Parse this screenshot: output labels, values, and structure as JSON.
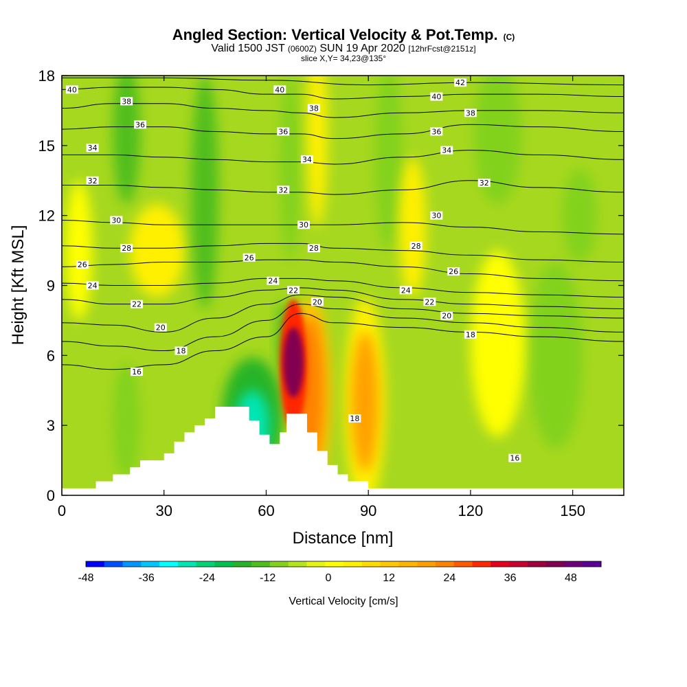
{
  "chart_data": {
    "type": "heatmap",
    "title": "Angled Section: Vertical Velocity & Pot.Temp.",
    "title_mark": "(C)",
    "subtitle_main": "Valid 1500 JST",
    "subtitle_utc": "(0600Z)",
    "subtitle_date": "SUN 19 Apr 2020",
    "subtitle_fcst": "[12hrFcst@2151z]",
    "slice": "slice X,Y= 34,23@135°",
    "xlabel": "Distance [nm]",
    "ylabel": "Height [Kft MSL]",
    "xlim": [
      0,
      165
    ],
    "ylim": [
      0,
      18
    ],
    "x_ticks": [
      0,
      30,
      60,
      90,
      120,
      150
    ],
    "y_ticks": [
      0,
      3,
      6,
      9,
      12,
      15,
      18
    ],
    "grid": false,
    "colorbar": {
      "label": "Vertical Velocity [cm/s]",
      "placement": "bottom",
      "min": -48,
      "max": 54,
      "step": 4,
      "tick_values": [
        -48,
        -36,
        -24,
        -12,
        0,
        12,
        24,
        36,
        48
      ],
      "colors": [
        "#0000ff",
        "#0050ff",
        "#0096ff",
        "#00c8ff",
        "#00ffff",
        "#00e6b4",
        "#00d278",
        "#00c050",
        "#28b428",
        "#50be1e",
        "#82d21e",
        "#b4e61e",
        "#e6f514",
        "#ffff00",
        "#fff000",
        "#ffdc00",
        "#ffc800",
        "#ffb400",
        "#ffa000",
        "#ff8200",
        "#ff5a00",
        "#ff2800",
        "#e6001e",
        "#c80032",
        "#a0003c",
        "#820050",
        "#6e0078",
        "#5a0096"
      ]
    },
    "terrain_top_kft": [
      [
        0,
        0.3
      ],
      [
        10,
        0.6
      ],
      [
        15,
        0.9
      ],
      [
        20,
        1.2
      ],
      [
        23,
        1.5
      ],
      [
        30,
        1.8
      ],
      [
        33,
        2.3
      ],
      [
        36,
        2.7
      ],
      [
        39,
        3.0
      ],
      [
        42,
        3.3
      ],
      [
        45,
        3.8
      ],
      [
        55,
        3.2
      ],
      [
        58,
        2.6
      ],
      [
        61,
        2.2
      ],
      [
        64,
        2.7
      ],
      [
        66,
        3.5
      ],
      [
        72,
        2.7
      ],
      [
        75,
        1.9
      ],
      [
        78,
        1.3
      ],
      [
        81,
        0.9
      ],
      [
        84,
        0.6
      ],
      [
        90,
        0.3
      ],
      [
        165,
        0.3
      ]
    ],
    "velocity_cells": [
      {
        "x": 68,
        "z": 5.7,
        "rx": 3,
        "rz": 1.5,
        "value": 54
      },
      {
        "x": 68,
        "z": 5.6,
        "rx": 4,
        "rz": 2.8,
        "value": 36
      },
      {
        "x": 73,
        "z": 4.5,
        "rx": 4,
        "rz": 3.2,
        "value": 30
      },
      {
        "x": 73,
        "z": 4.3,
        "rx": 6,
        "rz": 4.2,
        "value": 18
      },
      {
        "x": 89,
        "z": 4.0,
        "rx": 4,
        "rz": 3.0,
        "value": 24
      },
      {
        "x": 89,
        "z": 4.0,
        "rx": 6,
        "rz": 4.5,
        "value": 10
      },
      {
        "x": 103,
        "z": 11.5,
        "rx": 4,
        "rz": 3.0,
        "value": 8
      },
      {
        "x": 56,
        "z": 3.0,
        "rx": 5,
        "rz": 1.5,
        "value": -26
      },
      {
        "x": 56,
        "z": 3.4,
        "rx": 9,
        "rz": 2.5,
        "value": -14
      },
      {
        "x": 65,
        "z": 6.8,
        "rx": 2,
        "rz": 1.5,
        "value": -12
      },
      {
        "x": 19,
        "z": 15.5,
        "rx": 4,
        "rz": 3.0,
        "value": -10
      },
      {
        "x": 42,
        "z": 13.0,
        "rx": 4,
        "rz": 5.0,
        "value": -10
      },
      {
        "x": 67,
        "z": 14.0,
        "rx": 3,
        "rz": 4.0,
        "value": -8
      },
      {
        "x": 128,
        "z": 15.5,
        "rx": 7,
        "rz": 3.0,
        "value": -8
      },
      {
        "x": 152,
        "z": 12.0,
        "rx": 5,
        "rz": 2.0,
        "value": -8
      },
      {
        "x": 145,
        "z": 6.0,
        "rx": 8,
        "rz": 4.0,
        "value": -6
      },
      {
        "x": 19,
        "z": 3.2,
        "rx": 4,
        "rz": 2.5,
        "value": -6
      },
      {
        "x": 96,
        "z": 14.5,
        "rx": 4,
        "rz": 4.0,
        "value": -6
      },
      {
        "x": 28,
        "z": 10.5,
        "rx": 8,
        "rz": 2.0,
        "value": 8
      },
      {
        "x": 128,
        "z": 6.5,
        "rx": 8,
        "rz": 4.0,
        "value": 6
      },
      {
        "x": 75,
        "z": 15.5,
        "rx": 3,
        "rz": 4.0,
        "value": 8
      },
      {
        "x": 5,
        "z": 10.5,
        "rx": 4,
        "rz": 3.0,
        "value": 6
      }
    ],
    "theta_isolines": [
      {
        "value": 16,
        "points": [
          [
            0,
            5.6
          ],
          [
            15,
            5.4
          ],
          [
            30,
            5.6
          ],
          [
            45,
            6.2
          ],
          [
            60,
            6.8
          ],
          [
            70,
            7.8
          ],
          [
            80,
            7.4
          ],
          [
            100,
            7.2
          ],
          [
            120,
            7.0
          ],
          [
            140,
            6.8
          ],
          [
            165,
            6.6
          ]
        ]
      },
      {
        "value": 18,
        "points": [
          [
            0,
            6.6
          ],
          [
            15,
            6.4
          ],
          [
            30,
            6.2
          ],
          [
            45,
            6.8
          ],
          [
            60,
            7.5
          ],
          [
            70,
            8.2
          ],
          [
            80,
            8.0
          ],
          [
            100,
            7.6
          ],
          [
            120,
            7.4
          ],
          [
            140,
            7.2
          ],
          [
            165,
            7.0
          ]
        ]
      },
      {
        "value": 20,
        "points": [
          [
            0,
            7.4
          ],
          [
            15,
            7.3
          ],
          [
            30,
            7.0
          ],
          [
            45,
            7.6
          ],
          [
            60,
            8.2
          ],
          [
            70,
            8.6
          ],
          [
            80,
            8.5
          ],
          [
            100,
            8.0
          ],
          [
            120,
            7.8
          ],
          [
            140,
            7.7
          ],
          [
            165,
            7.6
          ]
        ]
      },
      {
        "value": 22,
        "points": [
          [
            0,
            8.4
          ],
          [
            15,
            8.2
          ],
          [
            30,
            8.2
          ],
          [
            45,
            8.5
          ],
          [
            60,
            8.8
          ],
          [
            70,
            8.9
          ],
          [
            80,
            8.8
          ],
          [
            100,
            8.4
          ],
          [
            120,
            8.2
          ],
          [
            140,
            8.1
          ],
          [
            165,
            8.0
          ]
        ]
      },
      {
        "value": 24,
        "points": [
          [
            0,
            9.1
          ],
          [
            15,
            9.0
          ],
          [
            30,
            9.0
          ],
          [
            45,
            9.1
          ],
          [
            60,
            9.3
          ],
          [
            70,
            9.3
          ],
          [
            80,
            9.2
          ],
          [
            100,
            8.9
          ],
          [
            120,
            8.7
          ],
          [
            140,
            8.6
          ],
          [
            165,
            8.5
          ]
        ]
      },
      {
        "value": 26,
        "points": [
          [
            0,
            9.8
          ],
          [
            15,
            9.9
          ],
          [
            30,
            10.0
          ],
          [
            45,
            10.0
          ],
          [
            60,
            10.1
          ],
          [
            70,
            10.1
          ],
          [
            80,
            10.0
          ],
          [
            100,
            9.8
          ],
          [
            120,
            9.5
          ],
          [
            140,
            9.3
          ],
          [
            165,
            9.2
          ]
        ]
      },
      {
        "value": 28,
        "points": [
          [
            0,
            10.7
          ],
          [
            15,
            10.6
          ],
          [
            30,
            10.6
          ],
          [
            45,
            10.7
          ],
          [
            60,
            10.8
          ],
          [
            70,
            10.8
          ],
          [
            80,
            10.6
          ],
          [
            100,
            10.5
          ],
          [
            120,
            10.3
          ],
          [
            140,
            10.1
          ],
          [
            165,
            10.0
          ]
        ]
      },
      {
        "value": 30,
        "points": [
          [
            0,
            11.8
          ],
          [
            15,
            11.7
          ],
          [
            30,
            11.6
          ],
          [
            45,
            11.6
          ],
          [
            60,
            11.6
          ],
          [
            70,
            11.6
          ],
          [
            80,
            11.6
          ],
          [
            100,
            11.7
          ],
          [
            120,
            11.5
          ],
          [
            140,
            11.3
          ],
          [
            165,
            11.2
          ]
        ]
      },
      {
        "value": 32,
        "points": [
          [
            0,
            13.3
          ],
          [
            15,
            13.3
          ],
          [
            30,
            13.2
          ],
          [
            45,
            13.1
          ],
          [
            60,
            13.0
          ],
          [
            70,
            13.0
          ],
          [
            80,
            12.9
          ],
          [
            100,
            13.1
          ],
          [
            120,
            13.5
          ],
          [
            140,
            13.2
          ],
          [
            165,
            13.0
          ]
        ]
      },
      {
        "value": 34,
        "points": [
          [
            0,
            14.6
          ],
          [
            15,
            14.6
          ],
          [
            30,
            14.5
          ],
          [
            45,
            14.4
          ],
          [
            60,
            14.3
          ],
          [
            70,
            14.3
          ],
          [
            80,
            14.2
          ],
          [
            100,
            14.5
          ],
          [
            120,
            14.8
          ],
          [
            140,
            14.6
          ],
          [
            165,
            14.4
          ]
        ]
      },
      {
        "value": 36,
        "points": [
          [
            0,
            15.7
          ],
          [
            15,
            15.8
          ],
          [
            30,
            15.8
          ],
          [
            45,
            15.6
          ],
          [
            60,
            15.5
          ],
          [
            70,
            15.5
          ],
          [
            80,
            15.3
          ],
          [
            100,
            15.5
          ],
          [
            120,
            15.9
          ],
          [
            140,
            15.8
          ],
          [
            165,
            15.6
          ]
        ]
      },
      {
        "value": 38,
        "points": [
          [
            0,
            16.6
          ],
          [
            15,
            16.8
          ],
          [
            30,
            16.8
          ],
          [
            45,
            16.6
          ],
          [
            60,
            16.5
          ],
          [
            70,
            16.4
          ],
          [
            80,
            16.2
          ],
          [
            100,
            16.4
          ],
          [
            120,
            16.5
          ],
          [
            140,
            16.5
          ],
          [
            165,
            16.4
          ]
        ]
      },
      {
        "value": 40,
        "points": [
          [
            0,
            17.4
          ],
          [
            15,
            17.5
          ],
          [
            30,
            17.5
          ],
          [
            45,
            17.4
          ],
          [
            60,
            17.2
          ],
          [
            70,
            17.2
          ],
          [
            80,
            17.0
          ],
          [
            100,
            17.1
          ],
          [
            120,
            17.2
          ],
          [
            140,
            17.2
          ],
          [
            165,
            17.1
          ]
        ]
      },
      {
        "value": 42,
        "points": [
          [
            0,
            17.9
          ],
          [
            30,
            17.9
          ],
          [
            60,
            17.8
          ],
          [
            90,
            17.6
          ],
          [
            120,
            17.7
          ],
          [
            165,
            17.6
          ]
        ]
      }
    ],
    "theta_labels": [
      {
        "text": "40",
        "x": 3,
        "z": 17.4
      },
      {
        "text": "38",
        "x": 19,
        "z": 16.9
      },
      {
        "text": "36",
        "x": 23,
        "z": 15.9
      },
      {
        "text": "34",
        "x": 9,
        "z": 14.9
      },
      {
        "text": "32",
        "x": 9,
        "z": 13.5
      },
      {
        "text": "30",
        "x": 16,
        "z": 11.8
      },
      {
        "text": "28",
        "x": 19,
        "z": 10.6
      },
      {
        "text": "26",
        "x": 6,
        "z": 9.9
      },
      {
        "text": "24",
        "x": 9,
        "z": 9.0
      },
      {
        "text": "22",
        "x": 22,
        "z": 8.2
      },
      {
        "text": "20",
        "x": 29,
        "z": 7.2
      },
      {
        "text": "18",
        "x": 35,
        "z": 6.2
      },
      {
        "text": "16",
        "x": 22,
        "z": 5.3
      },
      {
        "text": "40",
        "x": 64,
        "z": 17.4
      },
      {
        "text": "38",
        "x": 74,
        "z": 16.6
      },
      {
        "text": "36",
        "x": 65,
        "z": 15.6
      },
      {
        "text": "34",
        "x": 72,
        "z": 14.4
      },
      {
        "text": "32",
        "x": 65,
        "z": 13.1
      },
      {
        "text": "30",
        "x": 71,
        "z": 11.6
      },
      {
        "text": "28",
        "x": 74,
        "z": 10.6
      },
      {
        "text": "26",
        "x": 55,
        "z": 10.2
      },
      {
        "text": "24",
        "x": 62,
        "z": 9.2
      },
      {
        "text": "22",
        "x": 68,
        "z": 8.8
      },
      {
        "text": "20",
        "x": 75,
        "z": 8.3
      },
      {
        "text": "42",
        "x": 117,
        "z": 17.7
      },
      {
        "text": "40",
        "x": 110,
        "z": 17.1
      },
      {
        "text": "38",
        "x": 120,
        "z": 16.4
      },
      {
        "text": "36",
        "x": 110,
        "z": 15.6
      },
      {
        "text": "34",
        "x": 113,
        "z": 14.8
      },
      {
        "text": "32",
        "x": 124,
        "z": 13.4
      },
      {
        "text": "30",
        "x": 110,
        "z": 12.0
      },
      {
        "text": "28",
        "x": 104,
        "z": 10.7
      },
      {
        "text": "26",
        "x": 115,
        "z": 9.6
      },
      {
        "text": "24",
        "x": 101,
        "z": 8.8
      },
      {
        "text": "22",
        "x": 108,
        "z": 8.3
      },
      {
        "text": "20",
        "x": 113,
        "z": 7.7
      },
      {
        "text": "18",
        "x": 120,
        "z": 6.9
      },
      {
        "text": "18",
        "x": 86,
        "z": 3.3
      },
      {
        "text": "16",
        "x": 133,
        "z": 1.6
      }
    ]
  }
}
